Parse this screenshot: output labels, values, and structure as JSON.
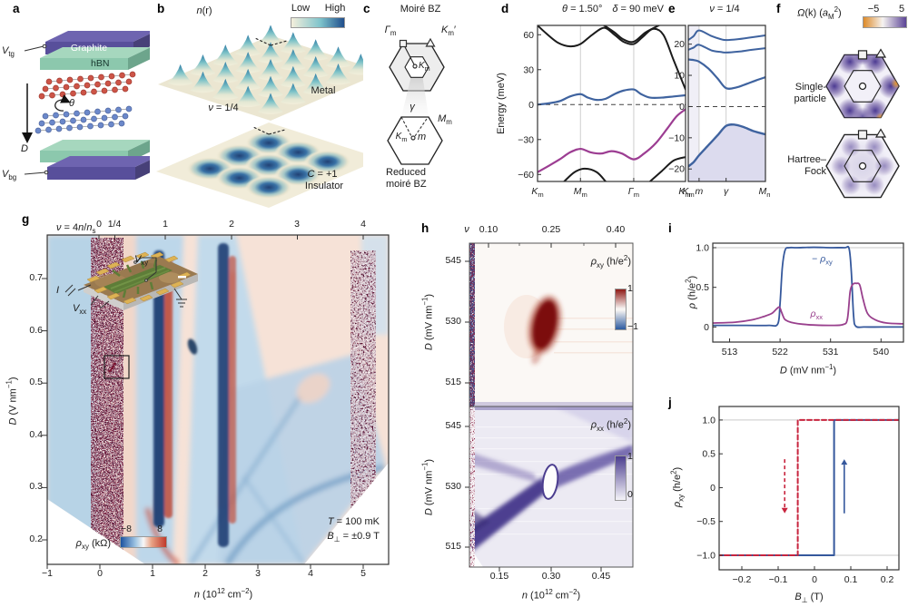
{
  "panels": {
    "a": {
      "label": "a",
      "gate_top": "*{V}_{tg}",
      "gate_bottom": "*{V}_{bg}",
      "layer_graphite": "Graphite",
      "layer_hbn": "hBN",
      "field": "*{D}",
      "twist_angle": "*{θ}"
    },
    "b": {
      "label": "b",
      "title": "*{n}(r)",
      "cbar_low": "Low",
      "cbar_high": "High",
      "metal": "Metal",
      "filling": "*{ν} = 1/4",
      "chern": "*{C} = +1",
      "insulator": "Insulator"
    },
    "c": {
      "label": "c",
      "title": "Moiré BZ",
      "gamma_m": "*{Γ}_{m}",
      "K_m_prime": "*{K}_{m}′",
      "K_m_center": "*{K}_{m}",
      "gamma": "*{γ}",
      "M_m": "*{M}_{m}",
      "K_m_lower": "*{K}_{m}",
      "m_point": "*{m}",
      "caption_line1": "Reduced",
      "caption_line2": "moiré BZ"
    },
    "d": {
      "label": "d"
    },
    "e": {
      "label": "e"
    },
    "f": {
      "label": "f",
      "title": "*{Ω}(k) (*{a}_{M}^{2})",
      "cbar_min": "−5",
      "cbar_max": "5",
      "map1_line1": "Single-",
      "map1_line2": "particle",
      "map2_line1": "Hartree–",
      "map2_line2": "Fock"
    },
    "g": {
      "label": "g",
      "top_axis_label": "*{ν} = 4*{n}/*{n}_{s}",
      "top_ticks": [
        "0",
        "1/4",
        "1",
        "2",
        "3",
        "4"
      ],
      "ylabel": "*{D} (V nm^{−1})",
      "yticks": [
        "0.7",
        "0.6",
        "0.5",
        "0.4",
        "0.3",
        "0.2"
      ],
      "xlabel": "*{n} (10^{12} cm^{−2})",
      "xticks": [
        "−1",
        "0",
        "1",
        "2",
        "3",
        "4",
        "5"
      ],
      "cbar_label": "*{ρ}_{xy} (kΩ)",
      "cbar_min": "−8",
      "cbar_max": "8",
      "condition_temp": "*{T} = 100 mK",
      "condition_field": "*{B}_{⊥} = ±0.9 T",
      "inset": {
        "vxy": "*{V}_{xy}",
        "vxx": "*{V}_{xx}",
        "current": "*{I}"
      }
    },
    "h": {
      "label": "h",
      "top_axis_label": "*{ν}",
      "top_ticks": [
        "0.10",
        "0.25",
        "0.40"
      ],
      "ylabel_top": "*{D} (mV nm^{−1})",
      "ylabel_bottom": "*{D} (mV nm^{−1})",
      "yticks_top": [
        "545",
        "530",
        "515"
      ],
      "yticks_bottom": [
        "545",
        "530",
        "515"
      ],
      "xticks": [
        "0.15",
        "0.30",
        "0.45"
      ],
      "xlabel": "*{n} (10^{12} cm^{−2})",
      "map1_label": "*{ρ}_{xy} (h/e^{2})",
      "map1_cbar_max": "1",
      "map1_cbar_min": "−1",
      "map2_label": "*{ρ}_{xx} (h/e^{2})",
      "map2_cbar_max": "1",
      "map2_cbar_min": "0"
    },
    "i": {
      "label": "i"
    },
    "j": {
      "label": "j"
    }
  },
  "chart_data": [
    {
      "id": "d",
      "type": "line",
      "title": "*{θ} = 1.50°  *{δ} = 90 meV",
      "ylabel": "Energy (meV)",
      "xlim": [
        0,
        1
      ],
      "ylim": [
        -66,
        68
      ],
      "xticks": [
        {
          "v": 0,
          "label": "*{K}_{m}"
        },
        {
          "v": 0.29,
          "label": "*{M}_{m}"
        },
        {
          "v": 0.65,
          "label": "*{Γ}_{m}"
        },
        {
          "v": 1,
          "label": "*{K}_{m}′"
        }
      ],
      "yticks": [
        {
          "v": 60,
          "label": "60"
        },
        {
          "v": 30,
          "label": "30"
        },
        {
          "v": 0,
          "label": "0"
        },
        {
          "v": -30,
          "label": "−30"
        },
        {
          "v": -60,
          "label": "−60"
        }
      ],
      "vgrid": [
        0.29,
        0.65
      ],
      "zero_dashed": true,
      "series": [
        {
          "name": "remote-band-upper",
          "color": "#1b1b1b",
          "width": 2,
          "x": [
            0,
            0.06,
            0.14,
            0.22,
            0.29,
            0.37,
            0.45,
            0.52,
            0.58,
            0.65,
            0.71,
            0.78,
            0.85,
            0.92,
            1
          ],
          "y": [
            68,
            61,
            53,
            50,
            52,
            60,
            66,
            60,
            54,
            52,
            58,
            65,
            60,
            38,
            13
          ]
        },
        {
          "name": "remote-band-upper-2",
          "color": "#1b1b1b",
          "width": 2,
          "x": [
            0.45,
            0.52,
            0.58,
            0.65,
            0.73,
            0.82
          ],
          "y": [
            68,
            62,
            56,
            54,
            62,
            68
          ]
        },
        {
          "name": "flat-conduction-band",
          "color": "#3f639f",
          "width": 2.2,
          "x": [
            0,
            0.07,
            0.15,
            0.22,
            0.29,
            0.34,
            0.4,
            0.46,
            0.52,
            0.58,
            0.65,
            0.7,
            0.76,
            0.84,
            0.92,
            1
          ],
          "y": [
            0,
            1,
            3,
            7,
            9,
            6,
            4,
            5,
            9,
            12,
            13,
            9,
            6,
            6,
            7,
            8
          ]
        },
        {
          "name": "flat-valence-band",
          "color": "#9c3d92",
          "width": 2.2,
          "x": [
            0,
            0.07,
            0.15,
            0.22,
            0.29,
            0.36,
            0.43,
            0.5,
            0.57,
            0.65,
            0.72,
            0.8,
            0.88,
            0.94,
            1
          ],
          "y": [
            -58,
            -53,
            -47,
            -41,
            -38,
            -41,
            -42,
            -40,
            -42,
            -47,
            -42,
            -33,
            -20,
            -10,
            -4
          ]
        },
        {
          "name": "remote-band-lower",
          "color": "#1b1b1b",
          "width": 2,
          "x": [
            0.18,
            0.25,
            0.32,
            0.4,
            0.46
          ],
          "y": [
            -66,
            -58,
            -55,
            -58,
            -66
          ]
        },
        {
          "name": "remote-band-lower-2",
          "color": "#1b1b1b",
          "width": 2,
          "x": [
            0.76,
            0.84,
            0.92,
            1
          ],
          "y": [
            -66,
            -57,
            -48,
            -45
          ]
        }
      ]
    },
    {
      "id": "e",
      "type": "line",
      "title": "*{ν} = 1/4",
      "xlim": [
        0,
        1
      ],
      "ylim": [
        -24,
        26
      ],
      "xticks": [
        {
          "v": 0,
          "label": "*{K}_{m}"
        },
        {
          "v": 0.14,
          "label": "*{m}"
        },
        {
          "v": 0.49,
          "label": "*{γ}"
        },
        {
          "v": 1,
          "label": "*{M}_{m}"
        }
      ],
      "yticks": [
        {
          "v": 20,
          "label": "20"
        },
        {
          "v": 10,
          "label": "10"
        },
        {
          "v": 0,
          "label": "0"
        },
        {
          "v": -10,
          "label": "−10"
        },
        {
          "v": -20,
          "label": "−20"
        }
      ],
      "vgrid": [
        0.14,
        0.49
      ],
      "zero_dashed": true,
      "bands": [
        [
          0,
          0.14,
          "#e9e8f4",
          0.7
        ]
      ],
      "series": [
        {
          "name": "hf-band-1",
          "color": "#3f639f",
          "width": 2,
          "x": [
            0,
            0.07,
            0.14,
            0.3,
            0.42,
            0.49,
            0.65,
            0.8,
            1
          ],
          "y": [
            21.3,
            22.6,
            24.4,
            22.6,
            21.6,
            21.3,
            21.6,
            22.1,
            22.8
          ]
        },
        {
          "name": "hf-band-2",
          "color": "#3f639f",
          "width": 2,
          "x": [
            0,
            0.07,
            0.14,
            0.3,
            0.42,
            0.49,
            0.65,
            0.8,
            1
          ],
          "y": [
            18.2,
            18.9,
            19.8,
            18,
            17.5,
            17.3,
            17.6,
            18.1,
            18.7
          ]
        },
        {
          "name": "hf-band-3",
          "color": "#3f639f",
          "width": 2.2,
          "x": [
            0,
            0.07,
            0.14,
            0.26,
            0.38,
            0.49,
            0.62,
            0.75,
            0.88,
            1
          ],
          "y": [
            15.1,
            14.9,
            14.4,
            12.2,
            9,
            5.9,
            6.1,
            7.2,
            8.4,
            9.4
          ]
        },
        {
          "name": "hf-filled-band",
          "color": "#3f639f",
          "width": 2.4,
          "fill": "#dcdbee",
          "x": [
            0,
            0.07,
            0.14,
            0.26,
            0.38,
            0.49,
            0.6,
            0.72,
            0.85,
            1
          ],
          "y": [
            -19.2,
            -17.8,
            -15.6,
            -12.4,
            -9.2,
            -6.2,
            -5.8,
            -6.6,
            -7.9,
            -8.9
          ]
        }
      ]
    },
    {
      "id": "i",
      "type": "line",
      "ylabel": "*{ρ} (h/e^{2})",
      "xlabel": "*{D} (mV nm^{−1})",
      "xlim": [
        510,
        544
      ],
      "ylim": [
        -0.19,
        1.057
      ],
      "xticks": [
        {
          "v": 513,
          "label": "513"
        },
        {
          "v": 522,
          "label": "522"
        },
        {
          "v": 531,
          "label": "531"
        },
        {
          "v": 540,
          "label": "540"
        }
      ],
      "yticks": [
        {
          "v": 1,
          "label": "1.0"
        },
        {
          "v": 0.5,
          "label": "0.5"
        },
        {
          "v": 0,
          "label": "0"
        }
      ],
      "hgrid": [
        1
      ],
      "series": [
        {
          "name": "neg-rho-xy",
          "color": "#35589c",
          "width": 1.8,
          "x": [
            510,
            516,
            520,
            521.6,
            522,
            522.4,
            522.9,
            523.6,
            525,
            528,
            531,
            533.5,
            534.3,
            534.7,
            535.1,
            535.5,
            537,
            540,
            544
          ],
          "y": [
            0.02,
            0.02,
            0.02,
            0.04,
            0.3,
            0.75,
            0.97,
            1,
            1,
            1.005,
            1,
            1,
            0.99,
            0.7,
            0.15,
            0.01,
            0,
            0,
            0
          ]
        },
        {
          "name": "rho-xx",
          "color": "#99408d",
          "width": 1.8,
          "x": [
            510,
            514,
            517,
            519,
            520.5,
            521.4,
            521.9,
            522.3,
            522.8,
            523.5,
            524.5,
            526,
            528,
            531,
            533.2,
            534,
            534.5,
            535,
            535.6,
            536.2,
            536.8,
            537.6,
            539,
            541,
            544
          ],
          "y": [
            0.05,
            0.06,
            0.09,
            0.13,
            0.17,
            0.23,
            0.25,
            0.18,
            0.1,
            0.07,
            0.05,
            0.035,
            0.025,
            0.02,
            0.03,
            0.1,
            0.45,
            0.54,
            0.55,
            0.53,
            0.35,
            0.17,
            0.09,
            0.05,
            0.04
          ]
        }
      ],
      "labels": [
        {
          "x": 529.5,
          "y": 0.82,
          "text": "− *{ρ}_{xy}",
          "color": "#35589c"
        },
        {
          "x": 528.5,
          "y": 0.13,
          "text": "*{ρ}_{xx}",
          "color": "#99408d"
        }
      ]
    },
    {
      "id": "j",
      "type": "line",
      "ylabel": "*{ρ}_{xy} (h/e^{2})",
      "xlabel": "*{B}_{⊥} (T)",
      "xlim": [
        -0.2625,
        0.2325
      ],
      "ylim": [
        -1.215,
        1.2
      ],
      "xticks": [
        {
          "v": -0.2,
          "label": "−0.2"
        },
        {
          "v": -0.1,
          "label": "−0.1"
        },
        {
          "v": 0,
          "label": "0"
        },
        {
          "v": 0.1,
          "label": "0.1"
        },
        {
          "v": 0.2,
          "label": "0.2"
        }
      ],
      "yticks": [
        {
          "v": 1,
          "label": "1.0"
        },
        {
          "v": 0.5,
          "label": "0.5"
        },
        {
          "v": 0,
          "label": "0"
        },
        {
          "v": -0.5,
          "label": "−0.5"
        },
        {
          "v": -1,
          "label": "−1.0"
        }
      ],
      "hgrid": [
        1,
        -1
      ],
      "series": [
        {
          "name": "sweep-up",
          "color": "#35589c",
          "width": 2,
          "smooth": false,
          "x": [
            -0.2625,
            0.054,
            0.054,
            0.2325
          ],
          "y": [
            -1,
            -1,
            1,
            1
          ]
        },
        {
          "name": "sweep-down",
          "color": "#c8243e",
          "width": 2,
          "dash": "5,3",
          "smooth": false,
          "x": [
            0.2325,
            -0.046,
            -0.046,
            -0.2625
          ],
          "y": [
            1,
            1,
            -1,
            -1
          ]
        }
      ],
      "arrows": [
        {
          "x": 0.082,
          "y1": -0.38,
          "y2": 0.42,
          "color": "#35589c"
        },
        {
          "x": -0.082,
          "y1": 0.42,
          "y2": -0.38,
          "color": "#c8243e",
          "dash": true
        }
      ]
    },
    {
      "id": "g",
      "type": "heatmap",
      "quantity": "*{ρ}_{xy} (kΩ)",
      "colorbar_range": [
        -8,
        8
      ],
      "x_axis": "*{n} (10^{12} cm^{−2})",
      "x_range": [
        -1,
        5
      ],
      "y_axis": "*{D} (V nm^{−1})",
      "y_range": [
        0.2,
        0.7
      ],
      "top_axis": "*{ν} = 4*{n}/*{n}_{s}",
      "top_tick_values": [
        0,
        0.25,
        1,
        2,
        3,
        4
      ],
      "conditions": [
        "*{T} = 100 mK",
        "*{B}_{⊥} = ±0.9 T"
      ],
      "features": [
        "antisymmetrized Hall map: blue negative, red positive",
        "insulating speckled stripe at n ≈ 0",
        "boxed Chern-insulator pocket near ν = 1/4, D ≈ 0.52 V nm−1",
        "sharp resistive stripes at ν = 1 and ν = 2",
        "speckled stripe near ν = 4 (full filling)",
        "data region bounded by gate-range diamond"
      ]
    },
    {
      "id": "h-rhoxy",
      "type": "heatmap",
      "quantity": "*{ρ}_{xy} (h/e^{2})",
      "colorbar_range": [
        -1,
        1
      ],
      "x_range": [
        0.05,
        0.58
      ],
      "y_range": [
        512,
        549
      ],
      "features": [
        "quantized ρxy ≈ +1 h/e2 pocket centred near ν = 0.25, D ≈ 528 mV nm−1",
        "noisy insulating column at low density"
      ]
    },
    {
      "id": "h-rhoxx",
      "type": "heatmap",
      "quantity": "*{ρ}_{xx} (h/e^{2})",
      "colorbar_range": [
        0,
        1
      ],
      "x_range": [
        0.05,
        0.58
      ],
      "y_range": [
        512,
        549
      ],
      "features": [
        "resistive phase boundaries crossing at a ρxx ≈ 0 pocket near n ≈ 0.32×10^12 cm−2"
      ]
    }
  ],
  "colors": {
    "band_blue": "#3f639f",
    "band_purple": "#9c3d92",
    "sweep_up_blue": "#35589c",
    "sweep_down_red": "#c8243e",
    "rho_xx_purple": "#99408d",
    "heat_positive_red": "#c0392b",
    "heat_negative_blue": "#1d53a0",
    "map_purple": "#4b3d8f",
    "berry_positive_purple": "#5b4496",
    "berry_negative_orange": "#dd8a28",
    "hbn_green": "#8cc8ad",
    "graphite_purple": "#584f9b"
  }
}
